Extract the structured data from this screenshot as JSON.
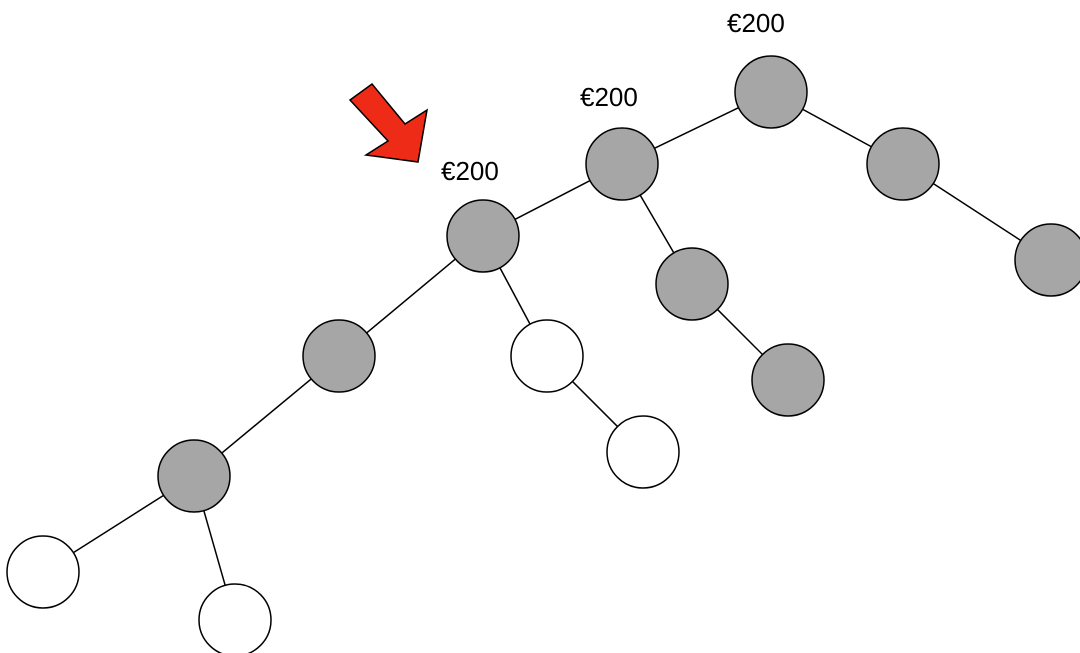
{
  "diagram": {
    "type": "binary-tree",
    "colors": {
      "filled_node": "#a6a6a6",
      "empty_node": "#ffffff",
      "stroke": "#000000",
      "arrow": "#ee2b17"
    },
    "nodes": [
      {
        "id": "n1",
        "state": "filled",
        "label": "€200"
      },
      {
        "id": "n2",
        "state": "filled",
        "label": "€200"
      },
      {
        "id": "n3",
        "state": "filled",
        "label": "€200"
      },
      {
        "id": "n4",
        "state": "filled",
        "label": ""
      },
      {
        "id": "n5",
        "state": "filled",
        "label": ""
      },
      {
        "id": "n6",
        "state": "filled",
        "label": ""
      },
      {
        "id": "n7",
        "state": "filled",
        "label": ""
      },
      {
        "id": "n8",
        "state": "filled",
        "label": ""
      },
      {
        "id": "n9",
        "state": "empty",
        "label": ""
      },
      {
        "id": "n10",
        "state": "empty",
        "label": ""
      },
      {
        "id": "n11",
        "state": "filled",
        "label": ""
      },
      {
        "id": "n12",
        "state": "empty",
        "label": ""
      },
      {
        "id": "n13",
        "state": "empty",
        "label": ""
      }
    ],
    "edges": [
      [
        "n1",
        "n2"
      ],
      [
        "n1",
        "n4"
      ],
      [
        "n4",
        "n5"
      ],
      [
        "n2",
        "n3"
      ],
      [
        "n2",
        "n6"
      ],
      [
        "n6",
        "n7"
      ],
      [
        "n3",
        "n8"
      ],
      [
        "n3",
        "n9"
      ],
      [
        "n9",
        "n10"
      ],
      [
        "n8",
        "n11"
      ],
      [
        "n11",
        "n12"
      ],
      [
        "n11",
        "n13"
      ]
    ],
    "arrow": {
      "icon": "red-arrow-icon",
      "points_to": "n3"
    }
  }
}
